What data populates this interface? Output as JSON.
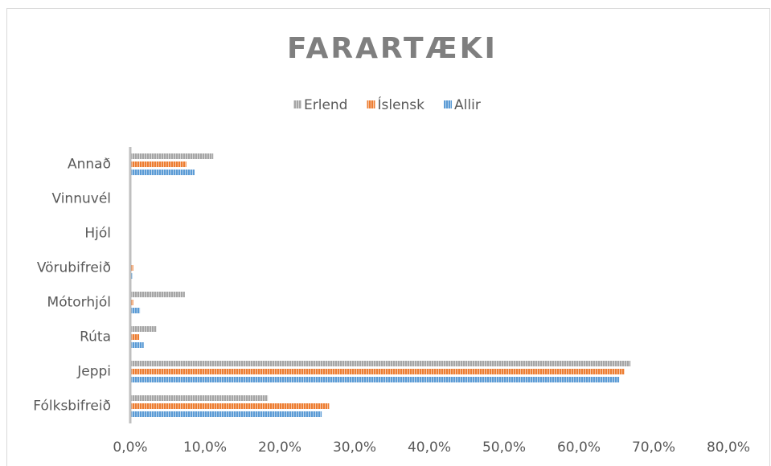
{
  "chart_data": {
    "type": "hbar",
    "title": "FARARTÆKI",
    "categories": [
      "Annað",
      "Vinnuvél",
      "Hjól",
      "Vörubifreið",
      "Mótorhjól",
      "Rúta",
      "Jeppi",
      "Fólksbifreið"
    ],
    "series": [
      {
        "name": "Erlend",
        "color": "#a5a5a5",
        "values": [
          11.1,
          0,
          0,
          0,
          7.3,
          3.5,
          66.9,
          18.4
        ]
      },
      {
        "name": "Íslensk",
        "color": "#ed7d31",
        "values": [
          7.5,
          0,
          0,
          0.4,
          0.4,
          1.2,
          66.1,
          26.6
        ]
      },
      {
        "name": "Allir",
        "color": "#5b9bd5",
        "values": [
          8.6,
          0,
          0,
          0.3,
          1.3,
          1.8,
          65.4,
          25.6
        ]
      }
    ],
    "xlim": [
      0,
      80
    ],
    "xticks": [
      {
        "value": 0,
        "label": "0,0%"
      },
      {
        "value": 10,
        "label": "10,0%"
      },
      {
        "value": 20,
        "label": "20,0%"
      },
      {
        "value": 30,
        "label": "30,0%"
      },
      {
        "value": 40,
        "label": "40,0%"
      },
      {
        "value": 50,
        "label": "50,0%"
      },
      {
        "value": 60,
        "label": "60,0%"
      },
      {
        "value": 70,
        "label": "70,0%"
      },
      {
        "value": 80,
        "label": "80,0%"
      }
    ],
    "legend": "top"
  }
}
